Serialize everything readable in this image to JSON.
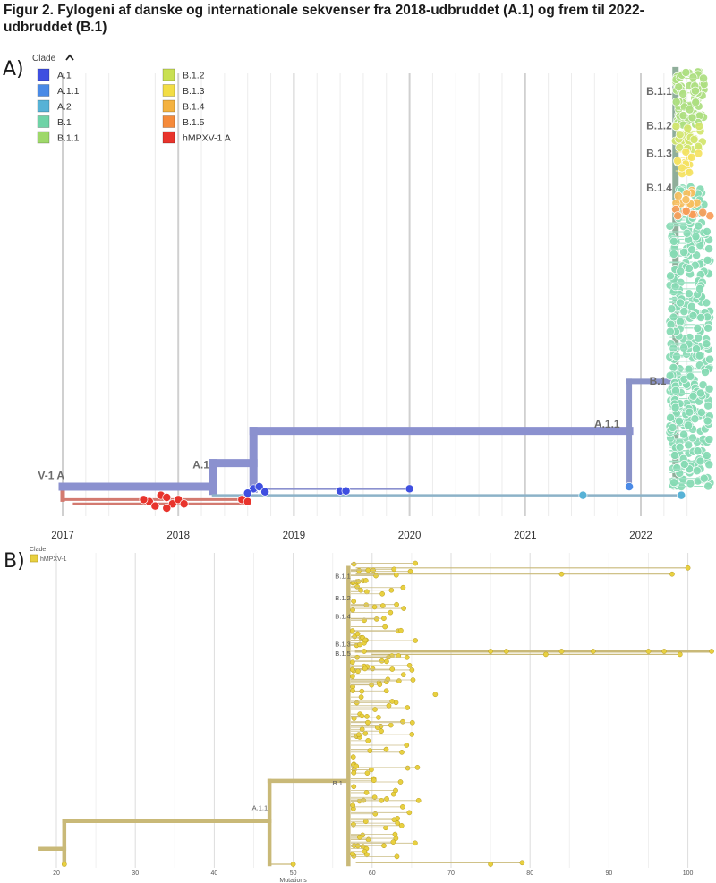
{
  "figure": {
    "title": "Figur 2. Fylogeni af danske og internationale sekvenser fra 2018-udbruddet (A.1) og frem til 2022-udbruddet (B.1)"
  },
  "colors": {
    "A.1": "#3f4fe0",
    "A.1.1": "#4a8ae6",
    "A.2": "#57b2d6",
    "B.1": "#6fd3a6",
    "B.1.1": "#9ed86a",
    "B.1.2": "#c9e052",
    "B.1.3": "#f2dd45",
    "B.1.4": "#f4b240",
    "B.1.5": "#f58a3a",
    "hMPXV-1 A": "#e8342c",
    "panelB": "#e8d040"
  },
  "chart_data": [
    {
      "panel": "A)",
      "type": "scatter",
      "title": "",
      "xlabel": "",
      "ylabel": "",
      "x_ticks": [
        "2017",
        "2018",
        "2019",
        "2020",
        "2021",
        "2022"
      ],
      "xlim": [
        2016.95,
        2022.65
      ],
      "grid": true,
      "legend": {
        "title": "Clade",
        "placement": "top-left",
        "entries": [
          "A.1",
          "A.1.1",
          "A.2",
          "B.1",
          "B.1.1",
          "B.1.2",
          "B.1.3",
          "B.1.4",
          "B.1.5",
          "hMPXV-1 A"
        ]
      },
      "clade_labels": [
        {
          "text": "B.1.1",
          "x": 2022.3,
          "y": 0.9
        },
        {
          "text": "B.1.2",
          "x": 2022.3,
          "y": 0.82
        },
        {
          "text": "B.1.3",
          "x": 2022.3,
          "y": 0.755
        },
        {
          "text": "B.1.4",
          "x": 2022.3,
          "y": 0.675
        },
        {
          "text": "B.1",
          "x": 2022.25,
          "y": 0.225
        },
        {
          "text": "A.1.1",
          "x": 2021.85,
          "y": 0.125
        },
        {
          "text": "A.1",
          "x": 2018.3,
          "y": 0.03
        },
        {
          "text": "V-1 A",
          "x": 2017.0,
          "y": 0.005
        }
      ],
      "branches": [
        {
          "clade": "hMPXV-1 A",
          "x1": 2017.0,
          "x2": 2017.0,
          "y1": -0.03,
          "y2": 0.0
        },
        {
          "clade": "A.1",
          "x1": 2017.0,
          "x2": 2018.3,
          "y1": 0.0,
          "y2": 0.0
        },
        {
          "clade": "A.1",
          "x1": 2018.3,
          "x2": 2018.3,
          "y1": -0.01,
          "y2": 0.055
        },
        {
          "clade": "A.1",
          "x1": 2018.3,
          "x2": 2018.65,
          "y1": 0.055,
          "y2": 0.055
        },
        {
          "clade": "A.1",
          "x1": 2018.65,
          "x2": 2018.65,
          "y1": -0.005,
          "y2": 0.13
        },
        {
          "clade": "A.1",
          "x1": 2018.65,
          "x2": 2021.9,
          "y1": 0.13,
          "y2": 0.13
        },
        {
          "clade": "A.1.1",
          "x1": 2021.9,
          "x2": 2021.9,
          "y1": 0.0,
          "y2": 0.245
        },
        {
          "clade": "A.1.1",
          "x1": 2021.9,
          "x2": 2022.3,
          "y1": 0.245,
          "y2": 0.245
        },
        {
          "clade": "B.1",
          "x1": 2022.3,
          "x2": 2022.3,
          "y1": 0.0,
          "y2": 0.97
        },
        {
          "clade": "A.1",
          "x1": 2018.65,
          "x2": 2020.0,
          "y1": -0.005,
          "y2": -0.005
        },
        {
          "clade": "A.2",
          "x1": 2018.3,
          "x2": 2022.35,
          "y1": -0.02,
          "y2": -0.02
        },
        {
          "clade": "hMPXV-1 A",
          "x1": 2017.0,
          "x2": 2018.6,
          "y1": -0.03,
          "y2": -0.03
        },
        {
          "clade": "hMPXV-1 A",
          "x1": 2017.1,
          "x2": 2018.6,
          "y1": -0.04,
          "y2": -0.04
        }
      ],
      "tips": [
        {
          "clade": "A.1",
          "x": 2018.65,
          "y": -0.005
        },
        {
          "clade": "A.1",
          "x": 2018.7,
          "y": 0.0
        },
        {
          "clade": "A.1",
          "x": 2018.75,
          "y": -0.012
        },
        {
          "clade": "A.1",
          "x": 2018.6,
          "y": -0.015
        },
        {
          "clade": "A.1",
          "x": 2019.4,
          "y": -0.01
        },
        {
          "clade": "A.1",
          "x": 2019.45,
          "y": -0.01
        },
        {
          "clade": "A.1",
          "x": 2020.0,
          "y": -0.005
        },
        {
          "clade": "A.1.1",
          "x": 2021.9,
          "y": 0.0
        },
        {
          "clade": "A.2",
          "x": 2021.5,
          "y": -0.02
        },
        {
          "clade": "A.2",
          "x": 2022.35,
          "y": -0.02
        },
        {
          "clade": "hMPXV-1 A",
          "x": 2017.85,
          "y": -0.02
        },
        {
          "clade": "hMPXV-1 A",
          "x": 2017.9,
          "y": -0.025
        },
        {
          "clade": "hMPXV-1 A",
          "x": 2017.75,
          "y": -0.035
        },
        {
          "clade": "hMPXV-1 A",
          "x": 2017.95,
          "y": -0.04
        },
        {
          "clade": "hMPXV-1 A",
          "x": 2018.0,
          "y": -0.03
        },
        {
          "clade": "hMPXV-1 A",
          "x": 2017.8,
          "y": -0.045
        },
        {
          "clade": "hMPXV-1 A",
          "x": 2018.05,
          "y": -0.04
        },
        {
          "clade": "hMPXV-1 A",
          "x": 2017.7,
          "y": -0.03
        },
        {
          "clade": "hMPXV-1 A",
          "x": 2018.55,
          "y": -0.03
        },
        {
          "clade": "hMPXV-1 A",
          "x": 2018.6,
          "y": -0.035
        },
        {
          "clade": "hMPXV-1 A",
          "x": 2017.9,
          "y": -0.05
        }
      ],
      "tip_clusters": [
        {
          "clade": "B.1",
          "count": 300,
          "x_range": [
            2022.25,
            2022.6
          ],
          "y_range": [
            0.0,
            0.62
          ]
        },
        {
          "clade": "B.1",
          "count": 30,
          "x_range": [
            2022.3,
            2022.55
          ],
          "y_range": [
            0.62,
            0.7
          ]
        },
        {
          "clade": "B.1.1",
          "count": 70,
          "x_range": [
            2022.3,
            2022.55
          ],
          "y_range": [
            0.84,
            0.97
          ]
        },
        {
          "clade": "B.1.2",
          "count": 25,
          "x_range": [
            2022.3,
            2022.55
          ],
          "y_range": [
            0.78,
            0.84
          ]
        },
        {
          "clade": "B.1.3",
          "count": 15,
          "x_range": [
            2022.3,
            2022.5
          ],
          "y_range": [
            0.72,
            0.78
          ]
        },
        {
          "clade": "B.1.4",
          "count": 12,
          "x_range": [
            2022.3,
            2022.5
          ],
          "y_range": [
            0.655,
            0.69
          ]
        },
        {
          "clade": "B.1.5",
          "count": 8,
          "x_range": [
            2022.3,
            2022.6
          ],
          "y_range": [
            0.63,
            0.655
          ]
        }
      ]
    },
    {
      "panel": "B)",
      "type": "scatter",
      "title": "",
      "xlabel": "Mutations",
      "ylabel": "",
      "x_ticks": [
        20,
        30,
        40,
        50,
        60,
        70,
        80,
        90,
        100
      ],
      "xlim": [
        15.5,
        103.5
      ],
      "grid": true,
      "legend": {
        "title": "Clade",
        "placement": "top-left",
        "entries": [
          "hMPXV-1"
        ]
      },
      "clade_labels": [
        {
          "text": "B.1.1",
          "x": 57.5,
          "y": 0.92
        },
        {
          "text": "B.1.2",
          "x": 57.5,
          "y": 0.85
        },
        {
          "text": "B.1.4",
          "x": 57.5,
          "y": 0.79
        },
        {
          "text": "B.1.3",
          "x": 57.5,
          "y": 0.7
        },
        {
          "text": "B.1.5",
          "x": 57.5,
          "y": 0.67
        },
        {
          "text": "B.1",
          "x": 56.5,
          "y": 0.25
        },
        {
          "text": "A.1.1",
          "x": 47.0,
          "y": 0.17
        }
      ],
      "branches": [
        {
          "x1": 18.0,
          "x2": 21.0,
          "y1": 0.05,
          "y2": 0.05
        },
        {
          "x1": 21.0,
          "x2": 21.0,
          "y1": 0.0,
          "y2": 0.14
        },
        {
          "x1": 21.0,
          "x2": 47.0,
          "y1": 0.14,
          "y2": 0.14
        },
        {
          "x1": 47.0,
          "x2": 47.0,
          "y1": 0.0,
          "y2": 0.27
        },
        {
          "x1": 47.0,
          "x2": 57.0,
          "y1": 0.27,
          "y2": 0.27
        },
        {
          "x1": 57.0,
          "x2": 57.0,
          "y1": 0.0,
          "y2": 0.96
        },
        {
          "x1": 47.0,
          "x2": 50.0,
          "y1": 0.0,
          "y2": 0.0
        },
        {
          "x1": 58.0,
          "x2": 100.0,
          "y1": 0.96,
          "y2": 0.96
        },
        {
          "x1": 58.0,
          "x2": 98.0,
          "y1": 0.94,
          "y2": 0.94
        },
        {
          "x1": 58.0,
          "x2": 103.0,
          "y1": 0.69,
          "y2": 0.69
        },
        {
          "x1": 60.0,
          "x2": 99.0,
          "y1": 0.68,
          "y2": 0.68
        },
        {
          "x1": 58.0,
          "x2": 79.0,
          "y1": 0.005,
          "y2": 0.005
        }
      ],
      "tips": [
        {
          "x": 21.0,
          "y": 0.0
        },
        {
          "x": 50.0,
          "y": 0.0
        },
        {
          "x": 100.0,
          "y": 0.96
        },
        {
          "x": 98.0,
          "y": 0.94
        },
        {
          "x": 84.0,
          "y": 0.94
        },
        {
          "x": 103.0,
          "y": 0.69
        },
        {
          "x": 99.0,
          "y": 0.68
        },
        {
          "x": 97.0,
          "y": 0.69
        },
        {
          "x": 95.0,
          "y": 0.69
        },
        {
          "x": 88.0,
          "y": 0.69
        },
        {
          "x": 84.0,
          "y": 0.69
        },
        {
          "x": 82.0,
          "y": 0.68
        },
        {
          "x": 77.0,
          "y": 0.69
        },
        {
          "x": 75.0,
          "y": 0.69
        },
        {
          "x": 68.0,
          "y": 0.55
        },
        {
          "x": 79.0,
          "y": 0.005
        },
        {
          "x": 75.0,
          "y": 0.0
        }
      ],
      "tip_clusters": [
        {
          "count": 160,
          "x_range": [
            57.5,
            66.0
          ],
          "y_range": [
            0.02,
            0.98
          ]
        }
      ]
    }
  ]
}
